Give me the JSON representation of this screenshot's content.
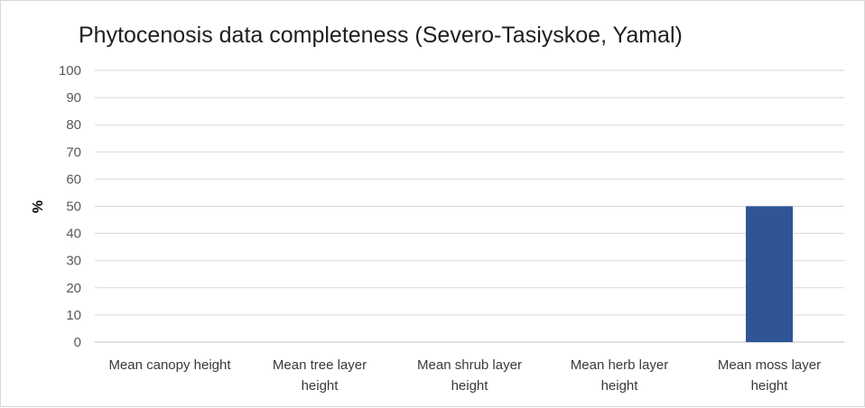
{
  "chart_data": {
    "type": "bar",
    "title": "Phytocenosis data completeness (Severo-Tasiyskoe, Yamal)",
    "ylabel": "%",
    "xlabel": "",
    "ylim": [
      0,
      100
    ],
    "yticks": [
      0,
      10,
      20,
      30,
      40,
      50,
      60,
      70,
      80,
      90,
      100
    ],
    "categories": [
      [
        "Mean canopy height"
      ],
      [
        "Mean tree layer",
        "height"
      ],
      [
        "Mean shrub layer",
        "height"
      ],
      [
        "Mean herb layer",
        "height"
      ],
      [
        "Mean moss layer",
        "height"
      ]
    ],
    "values": [
      0,
      0,
      0,
      0,
      50
    ],
    "bar_color": "#2f5597",
    "gridlines": true
  }
}
